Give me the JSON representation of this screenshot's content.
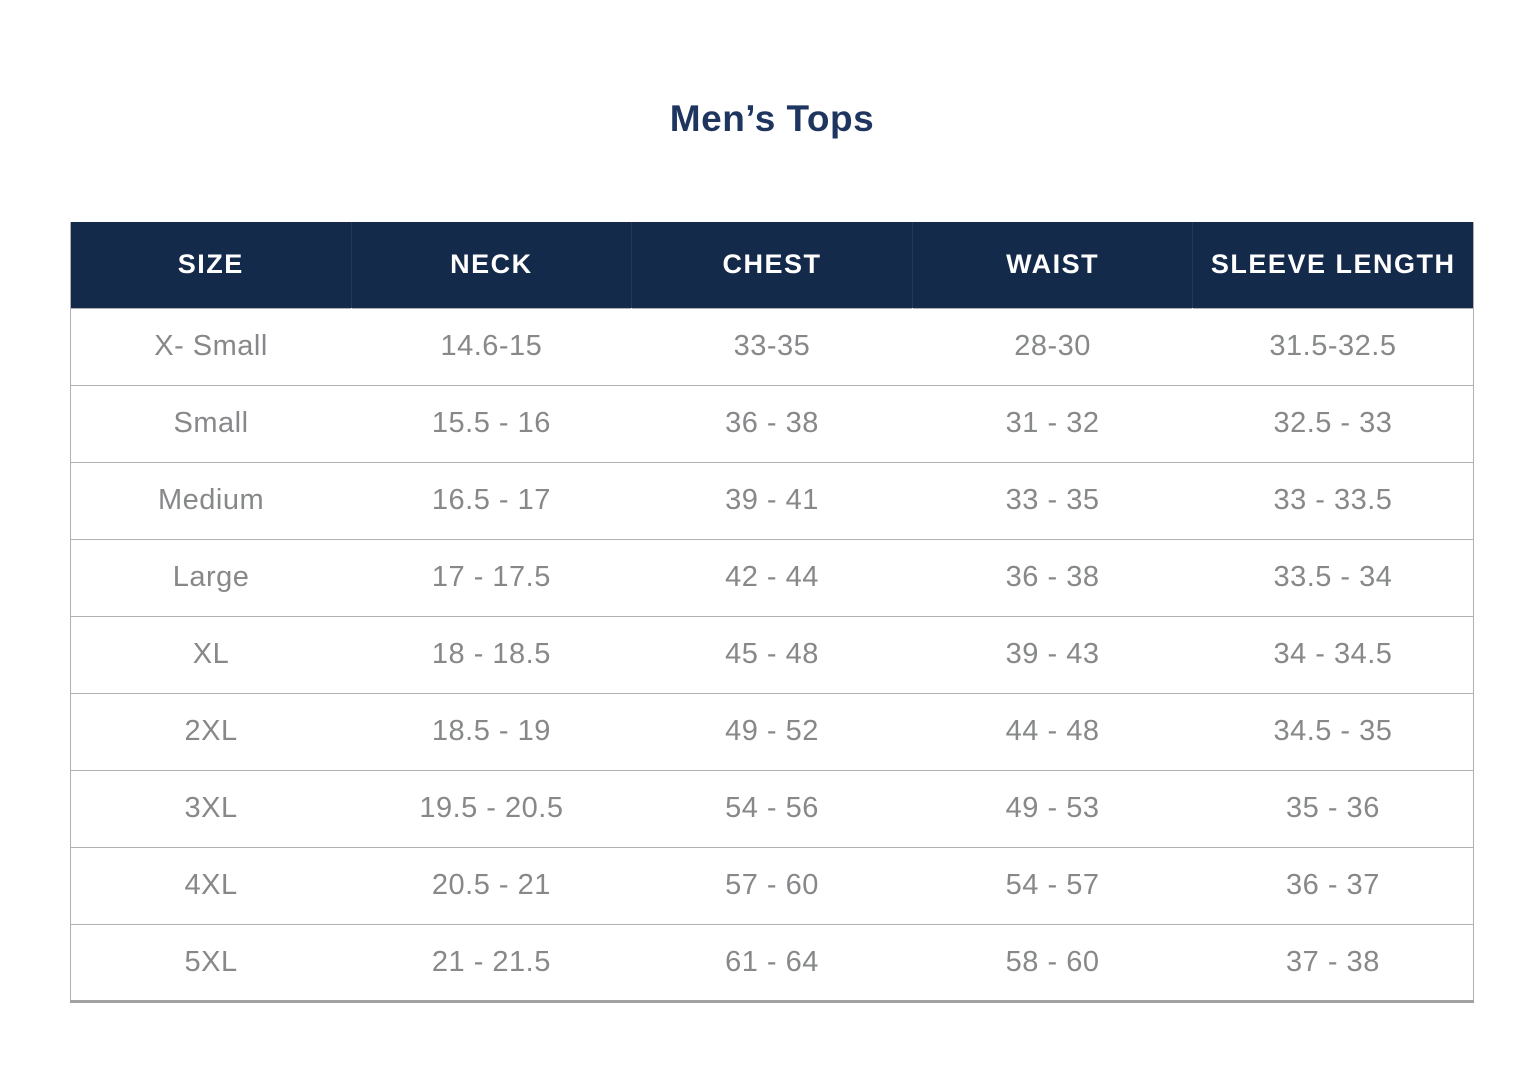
{
  "title": "Men’s Tops",
  "colors": {
    "header_bg": "#142a4b",
    "header_text": "#ffffff",
    "title_text": "#1e355f",
    "cell_text": "#86888a",
    "border": "#b0b0b0"
  },
  "chart_data": {
    "type": "table",
    "title": "Men’s Tops",
    "columns": [
      "SIZE",
      "NECK",
      "CHEST",
      "WAIST",
      "SLEEVE LENGTH"
    ],
    "rows": [
      [
        "X- Small",
        "14.6-15",
        "33-35",
        "28-30",
        "31.5-32.5"
      ],
      [
        "Small",
        "15.5 - 16",
        "36 - 38",
        "31 - 32",
        "32.5 - 33"
      ],
      [
        "Medium",
        "16.5 - 17",
        "39 - 41",
        "33 - 35",
        "33 - 33.5"
      ],
      [
        "Large",
        "17 - 17.5",
        "42 - 44",
        "36 - 38",
        "33.5 - 34"
      ],
      [
        "XL",
        "18 - 18.5",
        "45 - 48",
        "39 - 43",
        "34 - 34.5"
      ],
      [
        "2XL",
        "18.5 - 19",
        "49 - 52",
        "44 - 48",
        "34.5 - 35"
      ],
      [
        "3XL",
        "19.5 - 20.5",
        "54 - 56",
        "49 - 53",
        "35 - 36"
      ],
      [
        "4XL",
        "20.5 - 21",
        "57 - 60",
        "54 - 57",
        "36 - 37"
      ],
      [
        "5XL",
        "21 - 21.5",
        "61 - 64",
        "58 - 60",
        "37 - 38"
      ]
    ]
  }
}
